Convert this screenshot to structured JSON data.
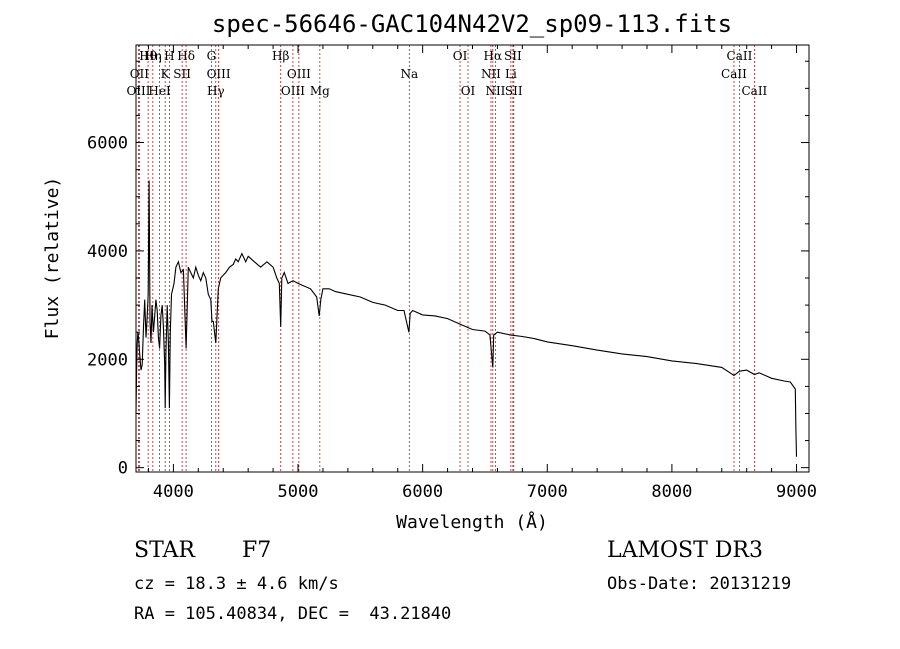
{
  "chart_data": {
    "type": "line",
    "title": "spec-56646-GAC104N42V2_sp09-113.fits",
    "xlabel": "Wavelength (Å)",
    "ylabel": "Flux (relative)",
    "xlim": [
      3700,
      9100
    ],
    "ylim": [
      -80,
      7800
    ],
    "x_ticks": [
      4000,
      5000,
      6000,
      7000,
      8000,
      9000
    ],
    "x_tick_labels": [
      "4000",
      "5000",
      "6000",
      "7000",
      "8000",
      "9000"
    ],
    "y_ticks": [
      0,
      2000,
      4000,
      6000
    ],
    "y_tick_labels": [
      "0",
      "2000",
      "4000",
      "6000"
    ],
    "series": [
      {
        "name": "spectrum",
        "x": [
          3700,
          3705,
          3710,
          3715,
          3720,
          3730,
          3740,
          3750,
          3760,
          3770,
          3780,
          3790,
          3798,
          3805,
          3812,
          3820,
          3828,
          3835,
          3840,
          3850,
          3860,
          3870,
          3880,
          3889,
          3900,
          3910,
          3920,
          3930,
          3934,
          3940,
          3950,
          3960,
          3968,
          3975,
          3985,
          3995,
          4005,
          4020,
          4040,
          4060,
          4080,
          4102,
          4120,
          4140,
          4160,
          4180,
          4200,
          4220,
          4240,
          4260,
          4280,
          4300,
          4310,
          4320,
          4340,
          4360,
          4380,
          4400,
          4420,
          4450,
          4480,
          4500,
          4520,
          4550,
          4580,
          4600,
          4650,
          4700,
          4750,
          4800,
          4830,
          4850,
          4861,
          4870,
          4890,
          4920,
          4960,
          5000,
          5050,
          5100,
          5150,
          5170,
          5183,
          5200,
          5250,
          5300,
          5400,
          5500,
          5600,
          5700,
          5800,
          5850,
          5890,
          5900,
          5920,
          6000,
          6100,
          6200,
          6300,
          6400,
          6500,
          6540,
          6563,
          6570,
          6600,
          6700,
          6800,
          6900,
          7000,
          7200,
          7400,
          7600,
          7800,
          8000,
          8200,
          8400,
          8498,
          8542,
          8600,
          8662,
          8700,
          8800,
          8900,
          8950,
          8990,
          8995,
          9000
        ],
        "y": [
          1000,
          1800,
          2300,
          2500,
          2400,
          2100,
          1800,
          1900,
          2600,
          3100,
          2400,
          2800,
          3200,
          5300,
          2700,
          2300,
          3000,
          2700,
          2500,
          2800,
          3100,
          2900,
          2400,
          2200,
          2800,
          3000,
          2600,
          1900,
          1100,
          2100,
          3000,
          2300,
          1100,
          2500,
          3200,
          3300,
          3400,
          3700,
          3800,
          3600,
          3650,
          2200,
          3700,
          3600,
          3500,
          3700,
          3550,
          3450,
          3600,
          3500,
          3200,
          3100,
          2700,
          2700,
          2300,
          3300,
          3500,
          3550,
          3600,
          3700,
          3750,
          3850,
          3800,
          3950,
          3800,
          3900,
          3800,
          3700,
          3800,
          3700,
          3500,
          3400,
          2600,
          3500,
          3600,
          3400,
          3450,
          3400,
          3350,
          3300,
          3150,
          2800,
          3100,
          3300,
          3300,
          3250,
          3200,
          3150,
          3050,
          3000,
          2900,
          2900,
          2500,
          2850,
          2900,
          2820,
          2800,
          2750,
          2650,
          2550,
          2520,
          2450,
          1850,
          2450,
          2500,
          2450,
          2420,
          2380,
          2320,
          2250,
          2170,
          2100,
          2050,
          1970,
          1920,
          1850,
          1700,
          1780,
          1800,
          1720,
          1750,
          1650,
          1600,
          1580,
          1450,
          700,
          200
        ]
      }
    ],
    "lines": [
      {
        "label": "Hθ",
        "wavelength": 3797
      },
      {
        "label": "OII",
        "wavelength": 3727
      },
      {
        "label": "OIII",
        "wavelength": 3720
      },
      {
        "label": "Hη",
        "wavelength": 3835
      },
      {
        "label": "K",
        "wavelength": 3934
      },
      {
        "label": "HeI",
        "wavelength": 3889
      },
      {
        "label": "H",
        "wavelength": 3968
      },
      {
        "label": "SII",
        "wavelength": 4070
      },
      {
        "label": "Hδ",
        "wavelength": 4102
      },
      {
        "label": "OIII",
        "wavelength": 4363
      },
      {
        "label": "Hγ",
        "wavelength": 4340
      },
      {
        "label": "G",
        "wavelength": 4305
      },
      {
        "label": "OIII",
        "wavelength": 5007
      },
      {
        "label": "OIII",
        "wavelength": 4959
      },
      {
        "label": "Hβ",
        "wavelength": 4861
      },
      {
        "label": "Mg",
        "wavelength": 5175
      },
      {
        "label": "Na",
        "wavelength": 5893
      },
      {
        "label": "OI",
        "wavelength": 6300
      },
      {
        "label": "OI",
        "wavelength": 6364
      },
      {
        "label": "Hα",
        "wavelength": 6563
      },
      {
        "label": "SII",
        "wavelength": 6724
      },
      {
        "label": "NII",
        "wavelength": 6548
      },
      {
        "label": "Li",
        "wavelength": 6708
      },
      {
        "label": "NII",
        "wavelength": 6584
      },
      {
        "label": "SII",
        "wavelength": 6731
      },
      {
        "label": "CaII",
        "wavelength": 8542
      },
      {
        "label": "CaII",
        "wavelength": 8498
      },
      {
        "label": "CaII",
        "wavelength": 8662
      }
    ]
  },
  "info": {
    "object_class": "STAR",
    "subclass": "F7",
    "survey": "LAMOST DR3",
    "redshift": "cz = 18.3 ± 4.6 km/s",
    "obs_date": "Obs-Date: 20131219",
    "coords": "RA = 105.40834, DEC =  43.21840"
  }
}
